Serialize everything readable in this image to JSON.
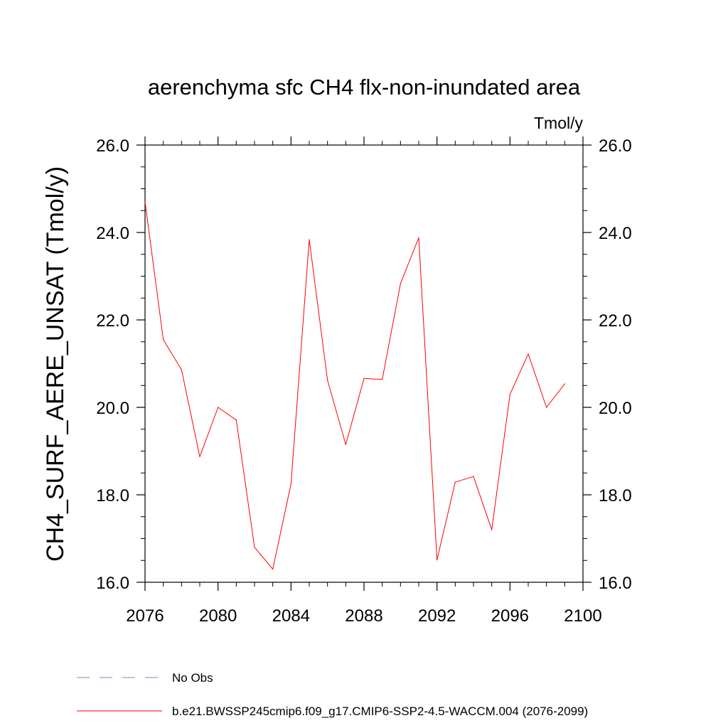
{
  "chart_data": {
    "type": "line",
    "title": "aerenchyma sfc CH4 flx-non-inundated area",
    "units_label": "Tmol/y",
    "ylabel": "CH4_SURF_AERE_UNSAT  (Tmol/y)",
    "xlabel": "",
    "xlim": [
      2076,
      2100
    ],
    "ylim": [
      16.0,
      26.0
    ],
    "x_ticks": [
      2076,
      2080,
      2084,
      2088,
      2092,
      2096,
      2100
    ],
    "y_ticks": [
      16.0,
      18.0,
      20.0,
      22.0,
      24.0,
      26.0
    ],
    "x_tick_labels": [
      "2076",
      "2080",
      "2084",
      "2088",
      "2092",
      "2096",
      "2100"
    ],
    "y_tick_labels": [
      "16.0",
      "18.0",
      "20.0",
      "22.0",
      "24.0",
      "26.0"
    ],
    "grid": false,
    "legend_placement": "bottom",
    "series": [
      {
        "name": "b.e21.BWSSP245cmip6.f09_g17.CMIP6-SSP2-4.5-WACCM.004 (2076-2099)",
        "color": "#ff0000",
        "style": "solid",
        "x": [
          2076,
          2077,
          2078,
          2079,
          2080,
          2081,
          2082,
          2083,
          2084,
          2085,
          2086,
          2087,
          2088,
          2089,
          2090,
          2091,
          2092,
          2093,
          2094,
          2095,
          2096,
          2097,
          2098,
          2099
        ],
        "y": [
          24.7,
          21.55,
          20.86,
          18.87,
          20.0,
          19.71,
          16.8,
          16.3,
          18.25,
          23.84,
          20.62,
          19.15,
          20.66,
          20.64,
          22.83,
          23.88,
          16.51,
          18.29,
          18.42,
          17.2,
          20.3,
          21.22,
          20.0,
          20.54
        ]
      }
    ],
    "legend": [
      {
        "label": "No Obs",
        "color": "#8080c0",
        "style": "dashed"
      },
      {
        "label": "b.e21.BWSSP245cmip6.f09_g17.CMIP6-SSP2-4.5-WACCM.004 (2076-2099)",
        "color": "#ff0000",
        "style": "solid"
      }
    ]
  }
}
